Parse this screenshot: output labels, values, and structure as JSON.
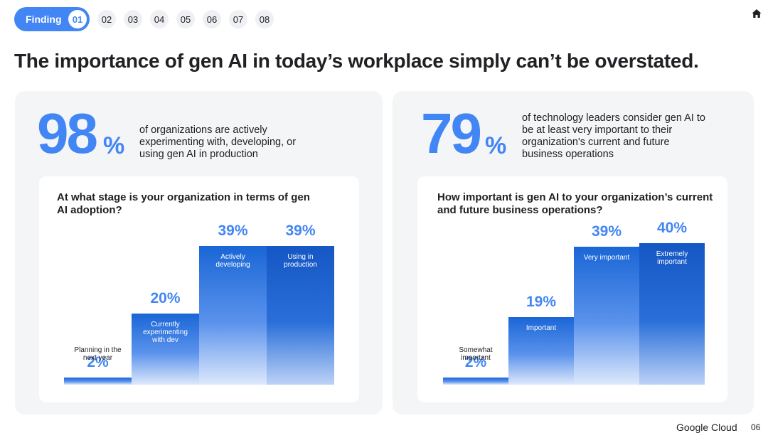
{
  "nav": {
    "active_label": "Finding",
    "active_number": "01",
    "items": [
      "02",
      "03",
      "04",
      "05",
      "06",
      "07",
      "08"
    ]
  },
  "home_icon": "home-icon",
  "title": "The importance of gen AI in today’s workplace simply can’t be overstated.",
  "left": {
    "stat_number": "98",
    "stat_unit": "%",
    "stat_desc": "of organizations are actively experimenting with, developing, or using gen AI in production",
    "question": "At what stage is your organization in terms of gen AI adoption?"
  },
  "right": {
    "stat_number": "79",
    "stat_unit": "%",
    "stat_desc": "of technology leaders consider gen AI to be at least very important to their organization's current and future business operations",
    "question": "How important is gen AI to your organization’s current and future business operations?"
  },
  "chart_data": [
    {
      "type": "bar",
      "title": "At what stage is your organization in terms of gen AI adoption?",
      "categories": [
        "Planning in the next year",
        "Currently experimenting with dev",
        "Actively developing",
        "Using in production"
      ],
      "values": [
        2,
        20,
        39,
        39
      ],
      "value_labels": [
        "2%",
        "20%",
        "39%",
        "39%"
      ],
      "xlabel": "",
      "ylabel": "",
      "ylim": [
        0,
        40
      ],
      "grid": false,
      "legend": "none"
    },
    {
      "type": "bar",
      "title": "How important is gen AI to your organization’s current and future business operations?",
      "categories": [
        "Somewhat important",
        "Important",
        "Very important",
        "Extremely important"
      ],
      "values": [
        2,
        19,
        39,
        40
      ],
      "value_labels": [
        "2%",
        "19%",
        "39%",
        "40%"
      ],
      "xlabel": "",
      "ylabel": "",
      "ylim": [
        0,
        40
      ],
      "grid": false,
      "legend": "none"
    }
  ],
  "footer": {
    "brand": "Google Cloud",
    "page": "06"
  },
  "colors": {
    "accent": "#4285f4",
    "bar_top": "#1a66d6",
    "card_bg": "#f4f5f7"
  }
}
